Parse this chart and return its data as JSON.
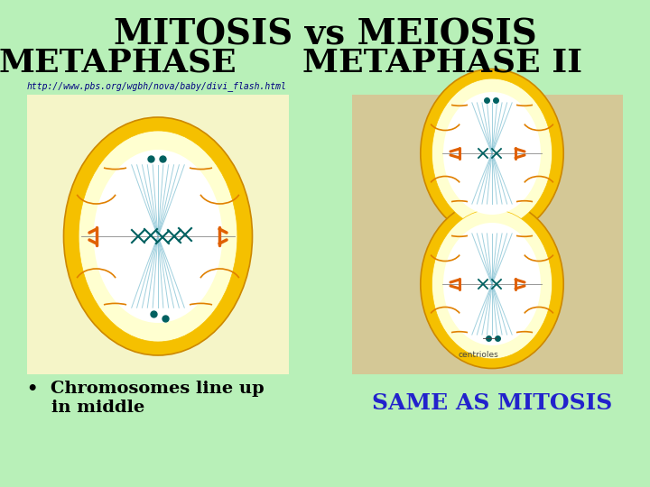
{
  "background_color": "#b8f0b8",
  "title_line1": "MITOSIS vs MEIOSIS",
  "title_line2_left": "METAPHASE",
  "title_line2_right": "METAPHASE II",
  "title_fontsize": 28,
  "subtitle_fontsize": 26,
  "url_text": "http://www.pbs.org/wgbh/nova/baby/divi_flash.html",
  "url_fontsize": 7,
  "url_color": "#000080",
  "bullet_text": "•  Chromosomes line up\n    in middle",
  "bullet_fontsize": 14,
  "bullet_color": "#000000",
  "same_text": "SAME AS MITOSIS",
  "same_fontsize": 18,
  "same_color": "#2222cc",
  "centrioles_text": "centrioles",
  "left_bg": "#f5f5c8",
  "right_bg": "#d4c896",
  "cell_outer_color": "#f5c000",
  "cell_fill_color": "#ffffc0",
  "spindle_color": "#90c8d8",
  "chromosome_color": "#006060",
  "centromere_color": "#e06000",
  "arc_color": "#e08000"
}
